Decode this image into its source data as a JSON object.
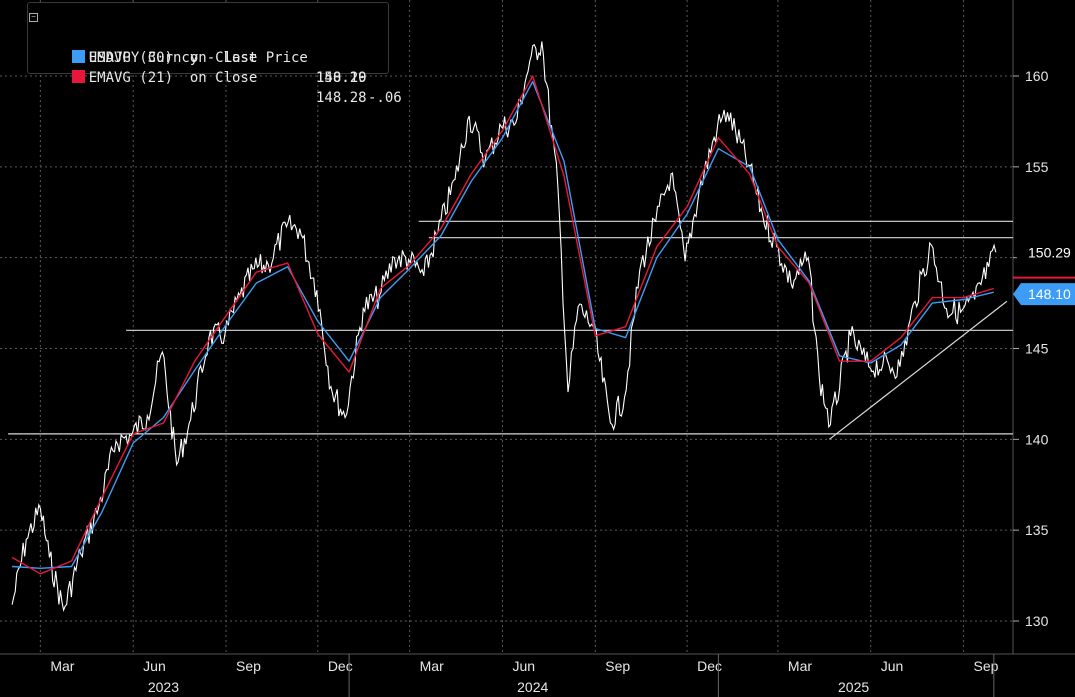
{
  "legend": {
    "entries": [
      {
        "label": "USDJPY Curncy - Last Price",
        "value": "150.29",
        "change": "-.06",
        "color": "#ffffff"
      },
      {
        "label": "EMAVG (30)  on Close",
        "value": "148.10",
        "change": "",
        "color": "#3d9cf5"
      },
      {
        "label": "EMAVG (21)  on Close",
        "value": "148.28",
        "change": "",
        "color": "#e8173a"
      }
    ]
  },
  "badges": {
    "last_price": "150.29",
    "ema30": "148.10"
  },
  "chart_data": {
    "type": "line",
    "title": "",
    "xlabel": "",
    "ylabel": "",
    "ylim": [
      128,
      162
    ],
    "y_ticks": [
      130,
      135,
      140,
      145,
      150,
      155,
      160
    ],
    "x_ticks": [
      "Mar",
      "Jun",
      "Sep",
      "Dec",
      "Mar",
      "Jun",
      "Sep",
      "Dec",
      "Mar",
      "Jun",
      "Sep"
    ],
    "x_years": [
      "2023",
      "2024",
      "2025"
    ],
    "grid": true,
    "series": [
      {
        "name": "USDJPY Curncy - Last Price",
        "color": "#ffffff",
        "x": [
          "2023-02-01",
          "2023-02-15",
          "2023-03-01",
          "2023-03-10",
          "2023-03-24",
          "2023-04-10",
          "2023-04-28",
          "2023-05-15",
          "2023-05-30",
          "2023-06-15",
          "2023-06-30",
          "2023-07-14",
          "2023-07-28",
          "2023-08-15",
          "2023-08-31",
          "2023-09-15",
          "2023-09-29",
          "2023-10-13",
          "2023-10-31",
          "2023-11-13",
          "2023-11-30",
          "2023-12-14",
          "2023-12-28",
          "2024-01-15",
          "2024-01-31",
          "2024-02-15",
          "2024-02-29",
          "2024-03-15",
          "2024-03-29",
          "2024-04-15",
          "2024-04-29",
          "2024-05-15",
          "2024-05-31",
          "2024-06-14",
          "2024-06-28",
          "2024-07-10",
          "2024-07-26",
          "2024-08-05",
          "2024-08-15",
          "2024-08-30",
          "2024-09-16",
          "2024-09-30",
          "2024-10-15",
          "2024-10-31",
          "2024-11-15",
          "2024-11-29",
          "2024-12-13",
          "2024-12-31",
          "2025-01-10",
          "2025-01-31",
          "2025-02-14",
          "2025-02-28",
          "2025-03-14",
          "2025-03-31",
          "2025-04-11",
          "2025-04-22",
          "2025-05-12",
          "2025-05-30",
          "2025-06-13",
          "2025-06-30",
          "2025-07-15",
          "2025-07-31",
          "2025-08-15",
          "2025-08-29",
          "2025-09-12",
          "2025-09-26",
          "2025-10-03"
        ],
        "values": [
          130.9,
          134.5,
          136.2,
          133.5,
          130.6,
          133.7,
          136.3,
          139.9,
          140.2,
          141.3,
          144.8,
          138.6,
          141.1,
          145.6,
          145.8,
          147.9,
          149.4,
          149.6,
          151.7,
          151.6,
          148.2,
          142.9,
          141.2,
          147.2,
          147.9,
          150.0,
          149.9,
          149.0,
          151.4,
          154.3,
          157.8,
          155.4,
          157.2,
          157.4,
          160.8,
          161.9,
          153.8,
          142.6,
          147.3,
          146.2,
          140.9,
          142.3,
          149.3,
          152.0,
          154.6,
          149.8,
          153.7,
          157.2,
          158.0,
          155.1,
          152.3,
          150.6,
          148.6,
          150.0,
          143.4,
          140.8,
          145.7,
          144.0,
          144.1,
          144.0,
          147.6,
          150.7,
          147.2,
          147.0,
          147.7,
          149.5,
          150.3
        ]
      },
      {
        "name": "EMAVG (30)  on Close",
        "color": "#3d9cf5",
        "x": [
          "2023-02-01",
          "2023-03-01",
          "2023-04-01",
          "2023-05-01",
          "2023-06-01",
          "2023-07-01",
          "2023-08-01",
          "2023-09-01",
          "2023-10-01",
          "2023-11-01",
          "2023-12-01",
          "2024-01-01",
          "2024-02-01",
          "2024-03-01",
          "2024-04-01",
          "2024-05-01",
          "2024-06-01",
          "2024-07-01",
          "2024-08-01",
          "2024-09-01",
          "2024-10-01",
          "2024-11-01",
          "2024-12-01",
          "2025-01-01",
          "2025-02-01",
          "2025-03-01",
          "2025-04-01",
          "2025-05-01",
          "2025-06-01",
          "2025-07-01",
          "2025-08-01",
          "2025-09-01",
          "2025-10-01"
        ],
        "values": [
          133.0,
          132.9,
          133.0,
          136.0,
          139.8,
          141.2,
          143.8,
          146.3,
          148.6,
          149.5,
          146.5,
          144.3,
          147.8,
          149.4,
          151.2,
          154.2,
          156.6,
          159.7,
          155.3,
          146.1,
          145.6,
          150.0,
          152.4,
          156.0,
          155.0,
          151.0,
          148.7,
          144.6,
          144.2,
          145.2,
          147.5,
          147.7,
          148.1
        ]
      },
      {
        "name": "EMAVG (21)  on Close",
        "color": "#e8173a",
        "x": [
          "2023-02-01",
          "2023-03-01",
          "2023-04-01",
          "2023-05-01",
          "2023-06-01",
          "2023-07-01",
          "2023-08-01",
          "2023-09-01",
          "2023-10-01",
          "2023-11-01",
          "2023-12-01",
          "2024-01-01",
          "2024-02-01",
          "2024-03-01",
          "2024-04-01",
          "2024-05-01",
          "2024-06-01",
          "2024-07-01",
          "2024-08-01",
          "2024-09-01",
          "2024-10-01",
          "2024-11-01",
          "2024-12-01",
          "2025-01-01",
          "2025-02-01",
          "2025-03-01",
          "2025-04-01",
          "2025-05-01",
          "2025-06-01",
          "2025-07-01",
          "2025-08-01",
          "2025-09-01",
          "2025-10-01"
        ],
        "values": [
          133.5,
          132.6,
          133.3,
          136.8,
          140.3,
          140.9,
          144.3,
          146.8,
          149.2,
          149.7,
          145.8,
          143.7,
          148.3,
          149.6,
          151.6,
          154.6,
          157.0,
          160.0,
          154.5,
          145.7,
          146.2,
          150.6,
          152.8,
          156.6,
          154.6,
          150.6,
          148.6,
          144.3,
          144.3,
          145.6,
          147.8,
          147.8,
          148.3
        ]
      }
    ],
    "horizontal_levels": [
      152.0,
      151.1,
      146.0,
      140.3
    ],
    "trendline": {
      "start": {
        "x": "2025-04-21",
        "y": 140.0
      },
      "end": {
        "x": "2025-10-14",
        "y": 147.6
      }
    }
  }
}
